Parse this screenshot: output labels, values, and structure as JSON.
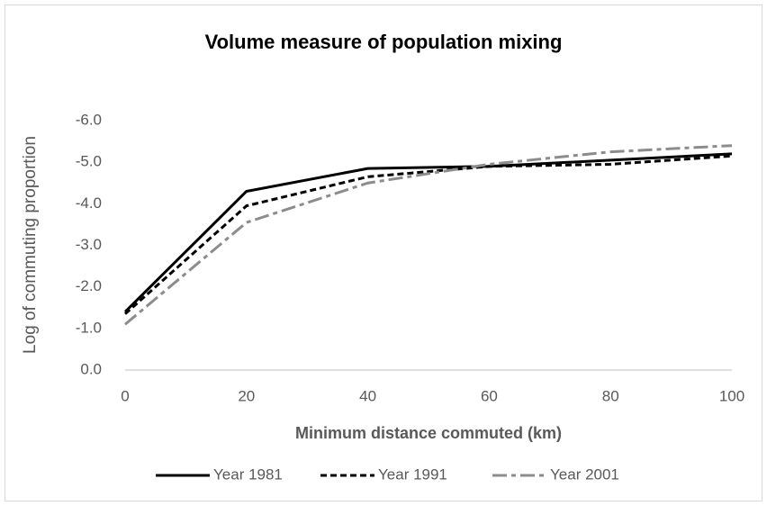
{
  "chart_data": {
    "type": "line",
    "title": "Volume measure of population mixing",
    "x_label": "Minimum distance commuted (km)",
    "y_label": "Log of commuting proportion",
    "x": [
      0,
      20,
      40,
      60,
      80,
      100
    ],
    "xlim": [
      0,
      100
    ],
    "xticks": [
      0,
      20,
      40,
      60,
      80,
      100
    ],
    "ylim": [
      0,
      -6
    ],
    "yticks": [
      {
        "value": 0,
        "label": "0.0"
      },
      {
        "value": -1,
        "label": "-1.0"
      },
      {
        "value": -2,
        "label": "-2.0"
      },
      {
        "value": -3,
        "label": "-3.0"
      },
      {
        "value": -4,
        "label": "-4.0"
      },
      {
        "value": -5,
        "label": "-5.0"
      },
      {
        "value": -6,
        "label": "-6.0"
      }
    ],
    "grid": false,
    "legend": "bottom",
    "series": [
      {
        "name": "Year 1981",
        "color": "#000000",
        "style": "solid",
        "values": [
          -1.4,
          -4.3,
          -4.85,
          -4.9,
          -5.05,
          -5.2
        ]
      },
      {
        "name": "Year 1991",
        "color": "#000000",
        "style": "dashed",
        "values": [
          -1.35,
          -3.95,
          -4.65,
          -4.9,
          -4.95,
          -5.15
        ]
      },
      {
        "name": "Year 2001",
        "color": "#8c8c8c",
        "style": "dashdot",
        "values": [
          -1.1,
          -3.55,
          -4.5,
          -4.95,
          -5.25,
          -5.4
        ]
      }
    ]
  }
}
